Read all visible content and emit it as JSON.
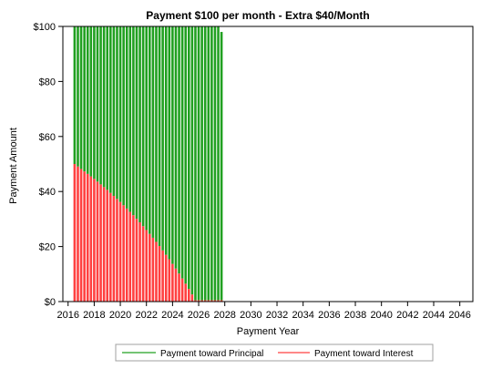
{
  "chart_data": {
    "type": "bar",
    "title": "Payment $100 per month - Extra $40/Month",
    "xlabel": "Payment Year",
    "ylabel": "Payment Amount",
    "xlim": [
      2015.6,
      2047.0
    ],
    "ylim": [
      0,
      100
    ],
    "x_ticks": [
      "2016",
      "2018",
      "2020",
      "2022",
      "2024",
      "2026",
      "2028",
      "2030",
      "2032",
      "2034",
      "2036",
      "2038",
      "2040",
      "2042",
      "2044",
      "2046"
    ],
    "y_ticks": [
      "$0",
      "$20",
      "$40",
      "$60",
      "$80",
      "$100"
    ],
    "stacked": true,
    "x": [
      2016.5,
      2016.75,
      2017,
      2017.25,
      2017.5,
      2017.75,
      2018,
      2018.25,
      2018.5,
      2018.75,
      2019,
      2019.25,
      2019.5,
      2019.75,
      2020,
      2020.25,
      2020.5,
      2020.75,
      2021,
      2021.25,
      2021.5,
      2021.75,
      2022,
      2022.25,
      2022.5,
      2022.75,
      2023,
      2023.25,
      2023.5,
      2023.75,
      2024,
      2024.25,
      2024.5,
      2024.75,
      2025,
      2025.25,
      2025.5,
      2025.75,
      2026,
      2026.25,
      2026.5,
      2026.75,
      2027,
      2027.25,
      2027.5,
      2027.75
    ],
    "series": [
      {
        "name": "Payment toward Interest",
        "color": "#ff4040",
        "values": [
          50,
          49.1,
          48.2,
          47.3,
          46.4,
          45.5,
          44.6,
          43.6,
          42.6,
          41.6,
          40.6,
          39.5,
          38.4,
          37.3,
          36.2,
          35,
          33.8,
          32.6,
          31.4,
          30.1,
          28.8,
          27.4,
          26,
          24.6,
          23.2,
          21.7,
          20.2,
          18.6,
          17,
          15.4,
          13.7,
          12,
          10.2,
          8.4,
          6.5,
          4.6,
          2.6,
          0.5,
          0.5,
          0.5,
          0.5,
          0.5,
          0.5,
          0.5,
          0.5,
          0.5
        ]
      },
      {
        "name": "Payment toward Principal",
        "color": "#20a020",
        "values": [
          50,
          50.9,
          51.8,
          52.7,
          53.6,
          54.5,
          55.4,
          56.4,
          57.4,
          58.4,
          59.4,
          60.5,
          61.6,
          62.7,
          63.8,
          65,
          66.2,
          67.4,
          68.6,
          69.9,
          71.2,
          72.6,
          74,
          75.4,
          76.8,
          78.3,
          79.8,
          81.4,
          83,
          84.6,
          86.3,
          88,
          89.8,
          91.6,
          93.5,
          95.4,
          97.4,
          99.5,
          99.5,
          99.5,
          99.5,
          99.5,
          99.5,
          99.5,
          99.5,
          97.5
        ]
      }
    ],
    "legend": "bottom",
    "grid": false
  }
}
